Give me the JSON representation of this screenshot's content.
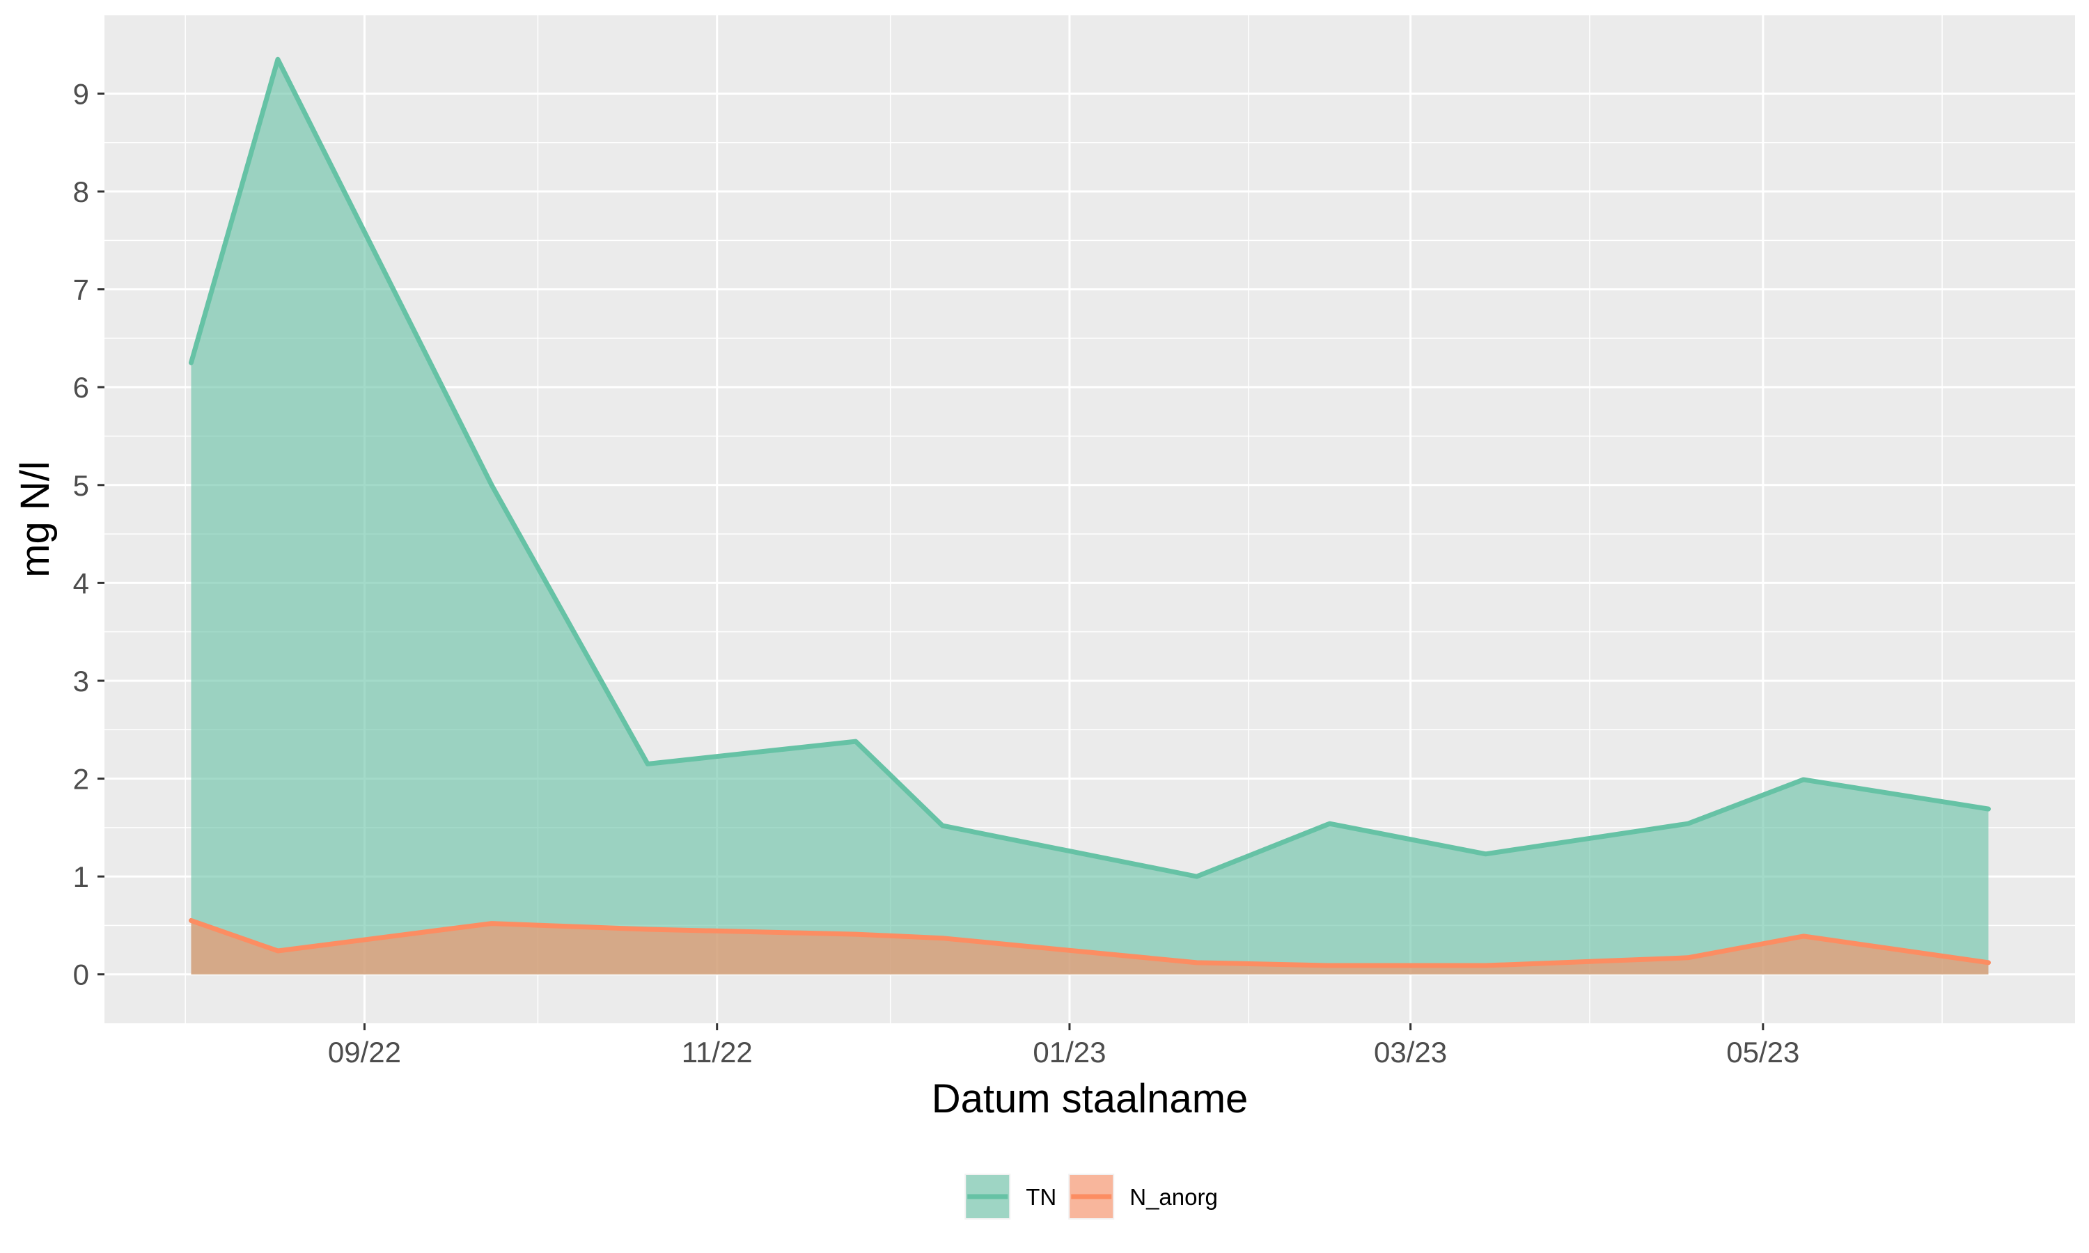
{
  "chart_data": {
    "type": "area",
    "xlabel": "Datum staalname",
    "ylabel": "mg N/l",
    "x_tick_labels": [
      "09/22",
      "11/22",
      "01/23",
      "03/23",
      "05/23"
    ],
    "x_ticks": [
      "2022-09-01",
      "2022-11-01",
      "2023-01-01",
      "2023-03-01",
      "2023-05-01"
    ],
    "x_minor_ticks": [
      "2022-08-01",
      "2022-10-01",
      "2022-12-01",
      "2023-02-01",
      "2023-04-01",
      "2023-06-01"
    ],
    "xlim": [
      "2022-07-18",
      "2023-06-24"
    ],
    "y_ticks": [
      0,
      1,
      2,
      3,
      4,
      5,
      6,
      7,
      8,
      9
    ],
    "ylim": [
      -0.5,
      9.8
    ],
    "grid": true,
    "legend_position": "bottom",
    "series": [
      {
        "name": "TN",
        "color": "#66c2a5",
        "points": [
          {
            "x": "2022-08-02",
            "y": 6.25
          },
          {
            "x": "2022-08-17",
            "y": 9.35
          },
          {
            "x": "2022-09-23",
            "y": 5.0
          },
          {
            "x": "2022-10-20",
            "y": 2.15
          },
          {
            "x": "2022-11-25",
            "y": 2.38
          },
          {
            "x": "2022-12-10",
            "y": 1.52
          },
          {
            "x": "2023-01-23",
            "y": 1.0
          },
          {
            "x": "2023-02-15",
            "y": 1.54
          },
          {
            "x": "2023-03-14",
            "y": 1.23
          },
          {
            "x": "2023-04-18",
            "y": 1.54
          },
          {
            "x": "2023-05-08",
            "y": 1.99
          },
          {
            "x": "2023-06-09",
            "y": 1.69
          }
        ]
      },
      {
        "name": "N_anorg",
        "color": "#fc8d62",
        "points": [
          {
            "x": "2022-08-02",
            "y": 0.55
          },
          {
            "x": "2022-08-17",
            "y": 0.24
          },
          {
            "x": "2022-09-23",
            "y": 0.52
          },
          {
            "x": "2022-10-20",
            "y": 0.46
          },
          {
            "x": "2022-11-25",
            "y": 0.41
          },
          {
            "x": "2022-12-10",
            "y": 0.37
          },
          {
            "x": "2023-01-23",
            "y": 0.12
          },
          {
            "x": "2023-02-15",
            "y": 0.09
          },
          {
            "x": "2023-03-14",
            "y": 0.09
          },
          {
            "x": "2023-04-18",
            "y": 0.17
          },
          {
            "x": "2023-05-08",
            "y": 0.39
          },
          {
            "x": "2023-06-09",
            "y": 0.12
          }
        ]
      }
    ]
  }
}
